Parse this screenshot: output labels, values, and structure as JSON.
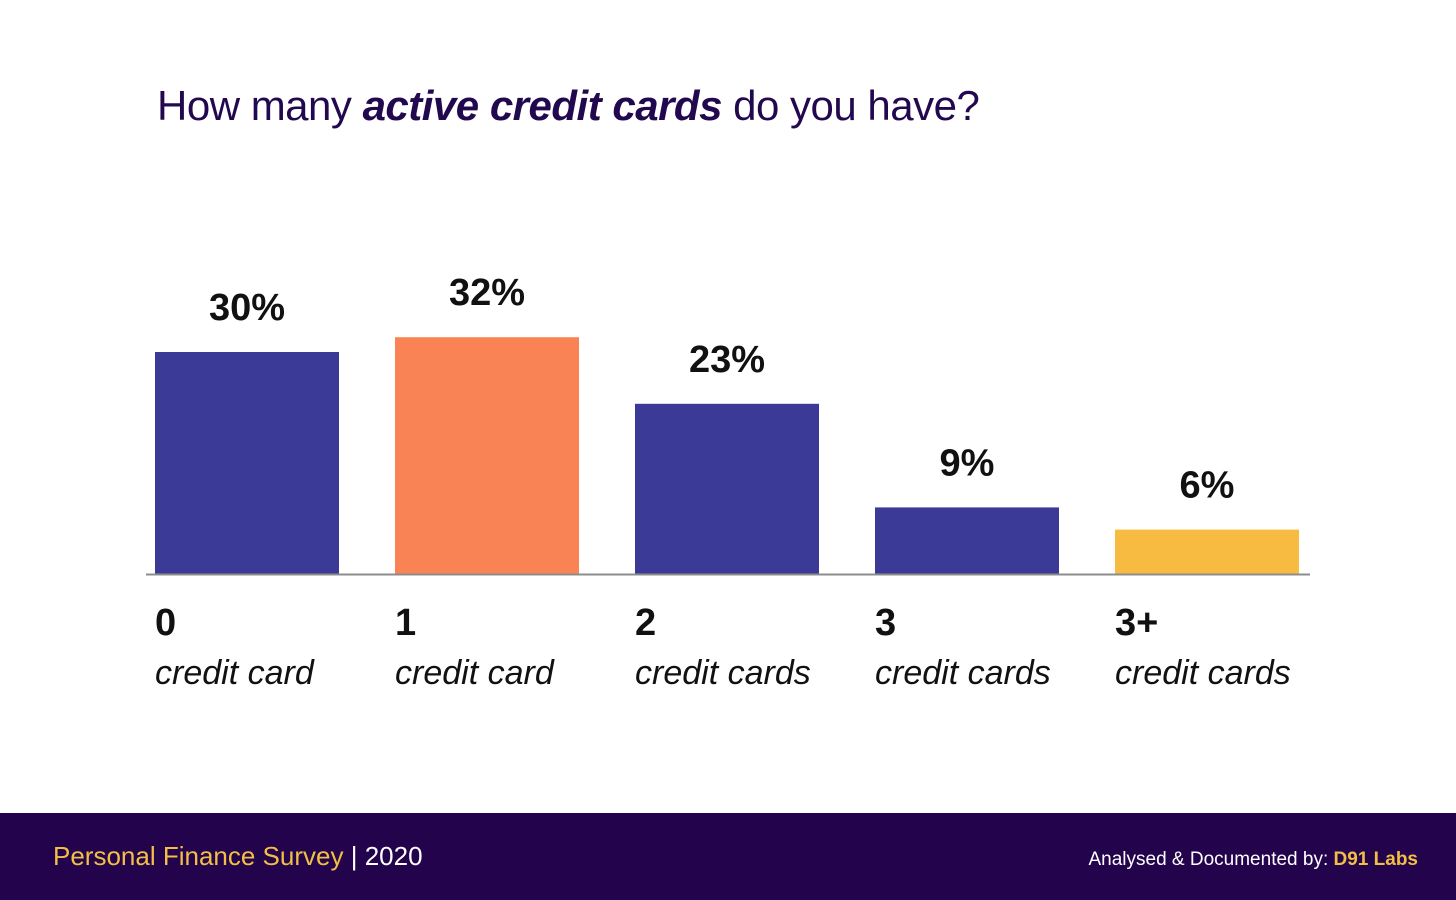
{
  "header": {
    "title_before": "How many ",
    "title_emphasis": "active credit cards",
    "title_after": " do you have?"
  },
  "chart_data": {
    "type": "bar",
    "title": "How many active credit cards do you have?",
    "categories": [
      "0",
      "1",
      "2",
      "3",
      "3+"
    ],
    "category_subtitles": [
      "credit card",
      "credit card",
      "credit cards",
      "credit cards",
      "credit cards"
    ],
    "values": [
      30,
      32,
      23,
      9,
      6
    ],
    "value_labels": [
      "30%",
      "32%",
      "23%",
      "9%",
      "6%"
    ],
    "bar_colors": [
      "#3c3a97",
      "#f98355",
      "#3c3a97",
      "#3c3a97",
      "#f8bb42"
    ],
    "ylim": [
      0,
      32
    ],
    "grid": false,
    "legend": "none"
  },
  "footer": {
    "survey_name": "Personal Finance Survey",
    "separator": " | ",
    "year": "2020",
    "credit_prefix": "Analysed & Documented by: ",
    "credit_org": "D91 Labs"
  },
  "colors": {
    "title": "#22094f",
    "footer_bg": "#22034c",
    "footer_accent": "#f2bf46",
    "axis": "#8c8c8c"
  }
}
